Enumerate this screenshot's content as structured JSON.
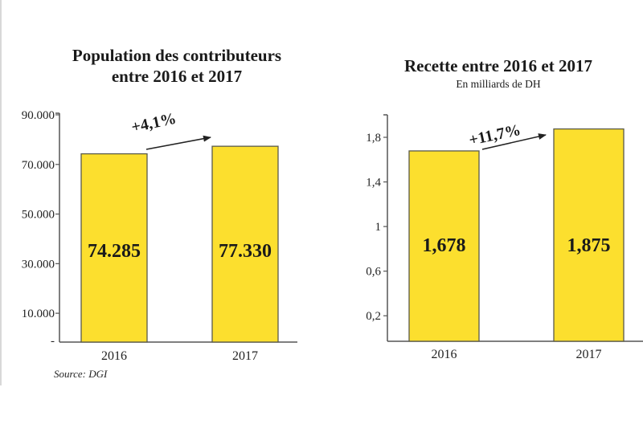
{
  "source": "Source: DGI",
  "colors": {
    "bar_fill": "#fcdf2e",
    "bar_stroke": "#5a5a4a",
    "axis": "#555555",
    "text": "#1a1a1a"
  },
  "chart_data": [
    {
      "type": "bar",
      "title": "Population des contributeurs entre 2016 et 2017",
      "title_lines": [
        "Population des contributeurs",
        "entre 2016 et 2017"
      ],
      "subtitle": "",
      "categories": [
        "2016",
        "2017"
      ],
      "values": [
        74285,
        77330
      ],
      "value_labels": [
        "74.285",
        "77.330"
      ],
      "yticks": [
        0,
        10000,
        30000,
        50000,
        70000,
        90000
      ],
      "ytick_labels": [
        "-",
        "10.000",
        "30.000",
        "50.000",
        "70.000",
        "90.000"
      ],
      "ylim": [
        0,
        90000
      ],
      "xlabel": "",
      "ylabel": "",
      "grid": false,
      "annotation": {
        "text": "+4,1%",
        "type": "growth-arrow",
        "from": "2016",
        "to": "2017"
      }
    },
    {
      "type": "bar",
      "title": "Recette entre 2016 et 2017",
      "title_lines": [
        "Recette entre 2016 et 2017"
      ],
      "subtitle": "En milliards de DH",
      "categories": [
        "2016",
        "2017"
      ],
      "values": [
        1.678,
        1.875
      ],
      "value_labels": [
        "1,678",
        "1,875"
      ],
      "yticks": [
        0.2,
        0.6,
        1,
        1.4,
        1.8
      ],
      "ytick_labels": [
        "0,2",
        "0,6",
        "1",
        "1,4",
        "1,8"
      ],
      "ylim": [
        0,
        2.0
      ],
      "xlabel": "",
      "ylabel": "",
      "grid": false,
      "annotation": {
        "text": "+11,7%",
        "type": "growth-arrow",
        "from": "2016",
        "to": "2017"
      }
    }
  ]
}
